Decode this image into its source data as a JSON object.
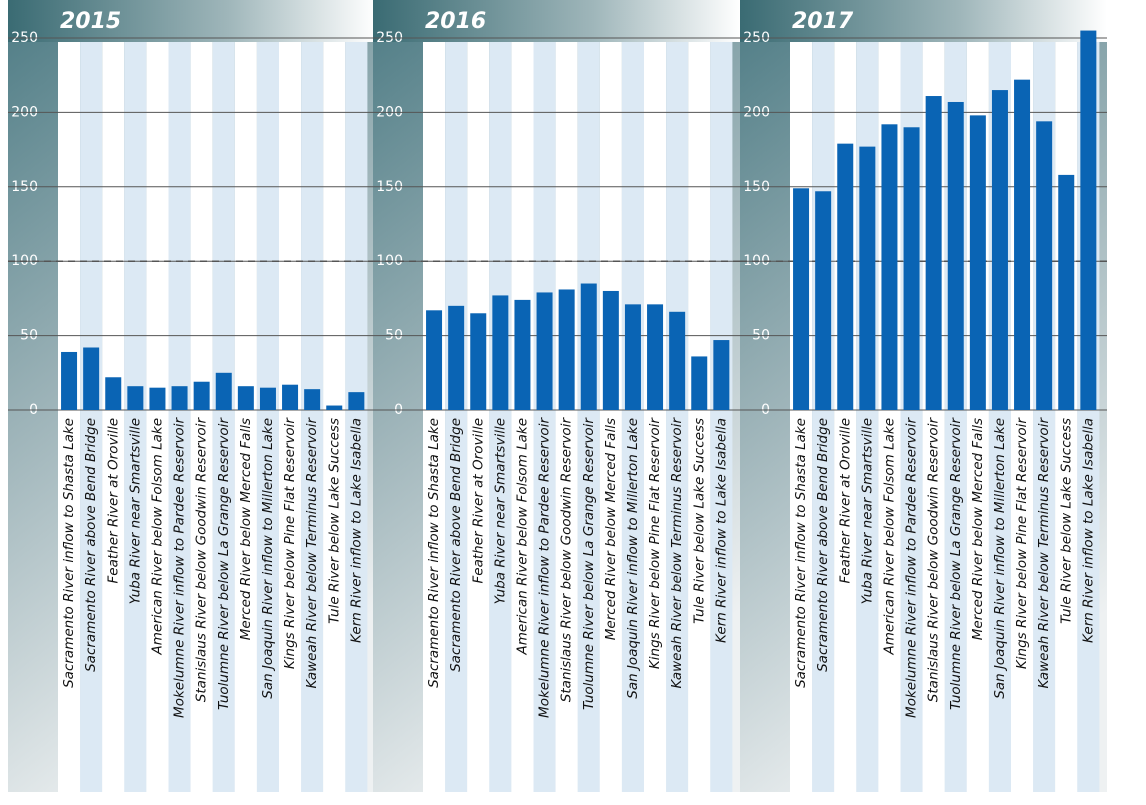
{
  "chart_data": [
    {
      "type": "bar",
      "title": "2015",
      "categories": [
        "Sacramento River inflow to Shasta Lake",
        "Sacramento River above Bend Bridge",
        "Feather River at Oroville",
        "Yuba River near Smartsville",
        "American River below Folsom Lake",
        "Mokelumne River inflow to Pardee Reservoir",
        "Stanislaus River below Goodwin Reservoir",
        "Tuolumne River below La Grange Reservoir",
        "Merced River below Merced Falls",
        "San Joaquin River inflow to Millerton Lake",
        "Kings River below Pine Flat Reservoir",
        "Kaweah River below Terminus Reservoir",
        "Tule River below Lake Success",
        "Kern River inflow to Lake Isabella"
      ],
      "values": [
        39,
        42,
        22,
        16,
        15,
        16,
        19,
        25,
        16,
        15,
        17,
        14,
        3,
        12
      ],
      "color": "#0a64b4",
      "ylim": [
        0,
        250
      ],
      "yticks": [
        0,
        50,
        100,
        150,
        200,
        250
      ],
      "reference": 100,
      "grid": true
    },
    {
      "type": "bar",
      "title": "2016",
      "categories": [
        "Sacramento River inflow to Shasta Lake",
        "Sacramento River above Bend Bridge",
        "Feather River at Oroville",
        "Yuba River near Smartsville",
        "American River below Folsom Lake",
        "Mokelumne River inflow to Pardee Reservoir",
        "Stanislaus River below Goodwin Reservoir",
        "Tuolumne River below La Grange Reservoir",
        "Merced River below Merced Falls",
        "San Joaquin River inflow to Millerton Lake",
        "Kings River below Pine Flat Reservoir",
        "Kaweah River below Terminus Reservoir",
        "Tule River below Lake Success",
        "Kern River inflow to Lake Isabella"
      ],
      "values": [
        67,
        70,
        65,
        77,
        74,
        79,
        81,
        85,
        80,
        71,
        71,
        66,
        36,
        47
      ],
      "color": "#0a64b4",
      "ylim": [
        0,
        250
      ],
      "yticks": [
        0,
        50,
        100,
        150,
        200,
        250
      ],
      "reference": 100,
      "grid": true
    },
    {
      "type": "bar",
      "title": "2017",
      "categories": [
        "Sacramento River inflow to Shasta Lake",
        "Sacramento River above Bend Bridge",
        "Feather River at Oroville",
        "Yuba River near Smartsville",
        "American River below Folsom Lake",
        "Mokelumne River inflow to Pardee Reservoir",
        "Stanislaus River below Goodwin Reservoir",
        "Tuolumne River below La Grange Reservoir",
        "Merced River below Merced Falls",
        "San Joaquin River inflow to Millerton Lake",
        "Kings River below Pine Flat Reservoir",
        "Kaweah River below Terminus Reservoir",
        "Tule River below Lake Success",
        "Kern River inflow to Lake Isabella"
      ],
      "values": [
        149,
        147,
        179,
        177,
        192,
        190,
        211,
        207,
        198,
        215,
        222,
        194,
        158,
        255
      ],
      "color": "#0a64b4",
      "ylim": [
        0,
        250
      ],
      "yticks": [
        0,
        50,
        100,
        150,
        200,
        250
      ],
      "reference": 100,
      "grid": true
    }
  ]
}
